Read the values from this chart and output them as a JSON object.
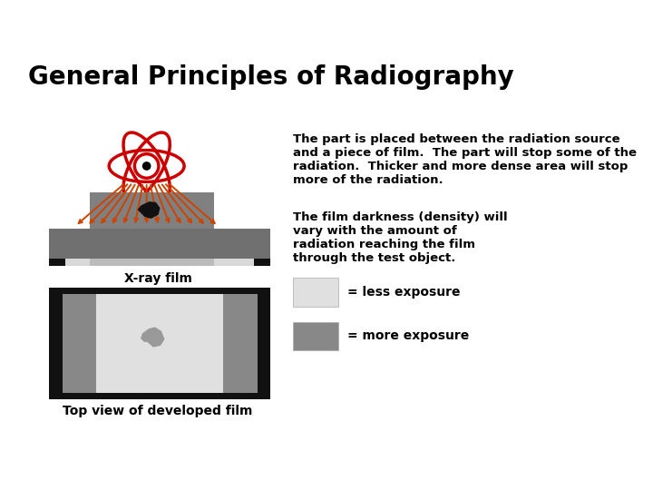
{
  "title": "General Principles of Radiography",
  "title_fontsize": 20,
  "title_fontweight": "bold",
  "bg_color": "#ffffff",
  "text1": "The part is placed between the radiation source\nand a piece of film.  The part will stop some of the\nradiation.  Thicker and more dense area will stop\nmore of the radiation.",
  "text1_fontsize": 9.5,
  "text2": "The film darkness (density) will\nvary with the amount of\nradiation reaching the film\nthrough the test object.",
  "text2_fontsize": 9.5,
  "label_xray": "X-ray film",
  "label_top": "Top view of developed film",
  "atom_color": "#cc0000",
  "arrow_color": "#cc4400",
  "part_gray": "#808080",
  "base_gray": "#707070",
  "film_light": "#d8d8d8",
  "film_dark": "#888888",
  "film_black": "#111111",
  "legend_light": "#e0e0e0",
  "legend_dark": "#888888",
  "defect_color": "#111111",
  "defect_film_color": "#999999"
}
